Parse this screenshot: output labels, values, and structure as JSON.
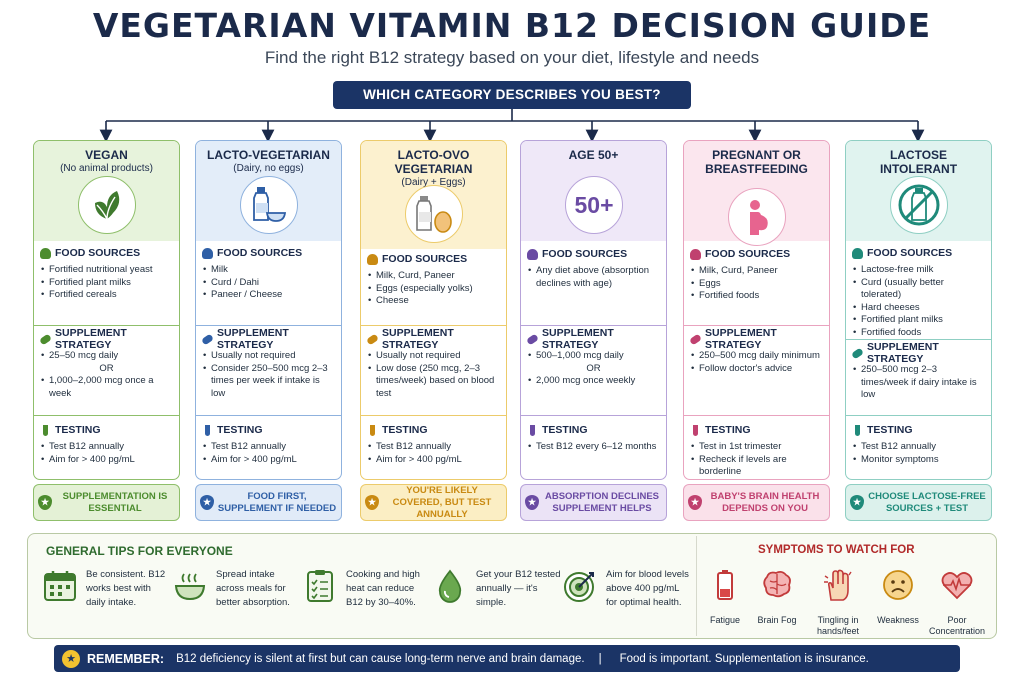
{
  "title": "VEGETARIAN VITAMIN B12 DECISION GUIDE",
  "subtitle": "Find the right B12 strategy based on your diet, lifestyle and needs",
  "question": "WHICH CATEGORY DESCRIBES YOU BEST?",
  "section_labels": {
    "food": "FOOD SOURCES",
    "supplement": "SUPPLEMENT STRATEGY",
    "testing": "TESTING"
  },
  "categories": [
    {
      "title": "VEGAN",
      "sub": "(No animal products)",
      "icon": "leaf-icon",
      "colors": {
        "border": "#8fbf6b",
        "head": "#e7f3dc",
        "accent": "#4c8c2e",
        "badge_bg": "#e4f1d6"
      },
      "food": [
        "Fortified nutritional yeast",
        "Fortified plant milks",
        "Fortified cereals"
      ],
      "supplement": [
        "25–50 mcg daily",
        "OR",
        "1,000–2,000 mcg once a week"
      ],
      "testing": [
        "Test B12 annually",
        "Aim for > 400 pg/mL"
      ],
      "badge": "SUPPLEMENTATION IS ESSENTIAL"
    },
    {
      "title": "LACTO-VEGETARIAN",
      "sub": "(Dairy, no eggs)",
      "icon": "milk-bottle-bowl-icon",
      "colors": {
        "border": "#8fb2de",
        "head": "#e3edf9",
        "accent": "#2f5fa6",
        "badge_bg": "#e1ebf8"
      },
      "food": [
        "Milk",
        "Curd / Dahi",
        "Paneer / Cheese"
      ],
      "supplement": [
        "Usually not required",
        "Consider 250–500 mcg 2–3 times per week if intake is low"
      ],
      "testing": [
        "Test B12 annually",
        "Aim for > 400 pg/mL"
      ],
      "badge": "FOOD FIRST, SUPPLEMENT IF NEEDED"
    },
    {
      "title": "LACTO-OVO VEGETARIAN",
      "sub": "(Dairy + Eggs)",
      "icon": "milk-egg-icon",
      "colors": {
        "border": "#eccb6b",
        "head": "#fcf1cf",
        "accent": "#c98a12",
        "badge_bg": "#fbeec4"
      },
      "food": [
        "Milk, Curd, Paneer",
        "Eggs (especially yolks)",
        "Cheese"
      ],
      "supplement": [
        "Usually not required",
        "Low dose (250 mcg, 2–3 times/week) based on blood test"
      ],
      "testing": [
        "Test B12 annually",
        "Aim for > 400 pg/mL"
      ],
      "badge": "YOU'RE LIKELY COVERED, BUT TEST ANNUALLY"
    },
    {
      "title": "AGE 50+",
      "sub": "",
      "icon": "age-50-icon",
      "icon_text": "50+",
      "colors": {
        "border": "#b7a3d9",
        "head": "#efe8f8",
        "accent": "#6a4ba3",
        "badge_bg": "#ebe3f6"
      },
      "food": [
        "Any diet above (absorption declines with age)"
      ],
      "supplement": [
        "500–1,000 mcg daily",
        "OR",
        "2,000 mcg once weekly"
      ],
      "testing": [
        "Test B12 every 6–12 months"
      ],
      "badge": "ABSORPTION DECLINES SUPPLEMENT HELPS"
    },
    {
      "title": "PREGNANT OR BREASTFEEDING",
      "sub": "",
      "icon": "pregnant-woman-icon",
      "colors": {
        "border": "#e9a3bf",
        "head": "#fbe6ee",
        "accent": "#c0416f",
        "badge_bg": "#fae1ea"
      },
      "food": [
        "Milk, Curd, Paneer",
        "Eggs",
        "Fortified foods"
      ],
      "supplement": [
        "250–500 mcg daily minimum",
        "Follow doctor's advice"
      ],
      "testing": [
        "Test in 1st trimester",
        "Recheck if levels are borderline"
      ],
      "badge": "BABY'S BRAIN HEALTH DEPENDS ON YOU"
    },
    {
      "title": "LACTOSE INTOLERANT",
      "sub": "",
      "icon": "no-milk-icon",
      "colors": {
        "border": "#8fcfc3",
        "head": "#e0f3ef",
        "accent": "#1f8a7a",
        "badge_bg": "#dcf1ec"
      },
      "food": [
        "Lactose-free milk",
        "Curd (usually better tolerated)",
        "Hard cheeses",
        "Fortified plant milks",
        "Fortified foods"
      ],
      "supplement": [
        "250–500 mcg 2–3 times/week if dairy intake is low"
      ],
      "testing": [
        "Test B12 annually",
        "Monitor symptoms"
      ],
      "badge": "CHOOSE LACTOSE-FREE SOURCES + TEST"
    }
  ],
  "tips": {
    "title": "GENERAL TIPS FOR EVERYONE",
    "items": [
      {
        "icon": "calendar-icon",
        "text": "Be consistent. B12 works best with daily intake."
      },
      {
        "icon": "steaming-bowl-icon",
        "text": "Spread intake across meals for better absorption."
      },
      {
        "icon": "checklist-icon",
        "text": "Cooking and high heat can reduce B12 by 30–40%."
      },
      {
        "icon": "blood-drop-icon",
        "text": "Get your B12 tested annually — it's simple."
      },
      {
        "icon": "target-icon",
        "text": "Aim for blood levels above 400 pg/mL for optimal health."
      }
    ]
  },
  "symptoms": {
    "title": "SYMPTOMS TO WATCH FOR",
    "items": [
      {
        "icon": "low-battery-icon",
        "label": "Fatigue"
      },
      {
        "icon": "brain-icon",
        "label": "Brain Fog"
      },
      {
        "icon": "hand-icon",
        "label": "Tingling in hands/feet"
      },
      {
        "icon": "sad-face-icon",
        "label": "Weakness"
      },
      {
        "icon": "heartbeat-icon",
        "label": "Poor Concentration"
      }
    ]
  },
  "remember": {
    "label": "REMEMBER:",
    "text": "B12 deficiency is silent at first but can cause long-term nerve and brain damage.",
    "separator": "|",
    "tagline": "Food is important. Supplementation is insurance."
  }
}
